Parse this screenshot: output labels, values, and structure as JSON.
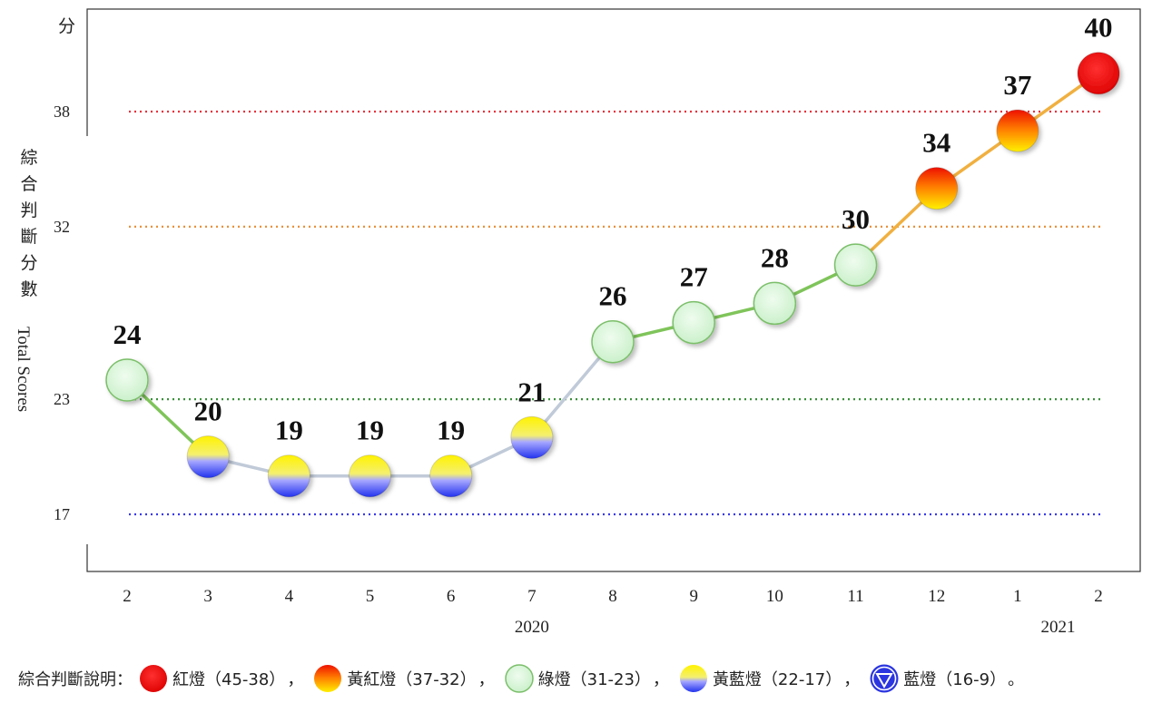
{
  "chart_data": {
    "type": "line",
    "unit_label": "分",
    "ylabel_cjk": "綜合判斷分數",
    "ylabel_en": "Total Scores",
    "yticks": [
      17,
      23,
      32,
      38
    ],
    "ylim": [
      13,
      42
    ],
    "categories": [
      "2",
      "3",
      "4",
      "5",
      "6",
      "7",
      "8",
      "9",
      "10",
      "11",
      "12",
      "1",
      "2"
    ],
    "year_labels": [
      {
        "label": "2020",
        "at_index": 5
      },
      {
        "label": "2021",
        "at_index": 11.5
      }
    ],
    "values": [
      24,
      20,
      19,
      19,
      19,
      21,
      26,
      27,
      28,
      30,
      34,
      37,
      40
    ],
    "thresholds": [
      {
        "value": 38,
        "color": "#e8323c"
      },
      {
        "value": 32,
        "color": "#e8913c"
      },
      {
        "value": 23,
        "color": "#3a8f3a"
      },
      {
        "value": 17,
        "color": "#3a3ae8"
      }
    ],
    "grid": false
  },
  "legend": {
    "title": "綜合判斷說明：",
    "items": [
      {
        "lamp": "red",
        "label": "紅燈（45-38）",
        "sep": "，"
      },
      {
        "lamp": "yellow-red",
        "label": "黃紅燈（37-32）",
        "sep": "，"
      },
      {
        "lamp": "green",
        "label": "綠燈（31-23）",
        "sep": "，"
      },
      {
        "lamp": "yellow-blue",
        "label": "黃藍燈（22-17）",
        "sep": "，"
      },
      {
        "lamp": "blue",
        "label": "藍燈（16-9）",
        "sep": "。"
      }
    ]
  },
  "colors": {
    "red": "#ee1111",
    "orange": "#ff8800",
    "yellow": "#ffee00",
    "green_fill": "#d8f5d8",
    "green_stroke": "#7bbf6a",
    "blue": "#3344ff",
    "line_gray": "#c0cad8",
    "line_green": "#7fc45a",
    "line_orange": "#f0b040"
  }
}
